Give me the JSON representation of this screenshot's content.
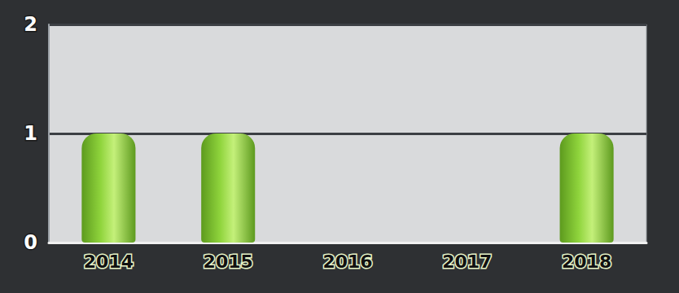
{
  "chart_data": {
    "type": "bar",
    "categories": [
      "2014",
      "2015",
      "2016",
      "2017",
      "2018"
    ],
    "values": [
      1,
      1,
      0,
      0,
      1
    ],
    "color": "#8fd43c",
    "ylim": [
      0,
      2
    ],
    "yticks": [
      0,
      1,
      2
    ],
    "grid": true
  }
}
